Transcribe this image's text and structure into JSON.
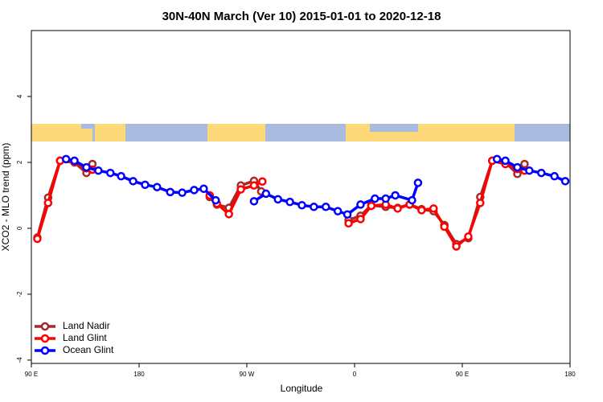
{
  "chart_data": {
    "type": "line",
    "title": "30N-40N March (Ver 10)   2015-01-01 to 2020-12-18",
    "xlabel": "Longitude",
    "ylabel": "XCO2 - MLO trend (ppm)",
    "xlim": [
      90,
      540
    ],
    "ylim": [
      -4.1,
      6
    ],
    "xticks": [
      {
        "value": 90,
        "label": "90 E"
      },
      180,
      {
        "value": 270,
        "label": "90 W"
      },
      {
        "value": 360,
        "label": "0"
      },
      {
        "value": 450,
        "label": "90 E"
      },
      {
        "value": 540,
        "label": "180"
      }
    ],
    "yticks": [
      -4,
      -2,
      0,
      2,
      4
    ],
    "legend": "bottomleft",
    "series": [
      {
        "name": "Land Nadir",
        "color": "#a52a2a",
        "x": [
          95,
          104,
          114,
          126,
          136,
          141,
          null,
          239,
          245,
          255,
          265,
          276,
          282,
          null,
          355,
          365,
          374,
          386,
          396,
          406,
          416,
          426,
          435,
          445,
          455,
          465,
          475,
          486,
          496,
          502
        ],
        "values": [
          -0.28,
          0.93,
          2.05,
          2.0,
          1.68,
          1.95,
          null,
          0.95,
          0.72,
          0.62,
          1.3,
          1.44,
          1.12,
          null,
          0.25,
          0.38,
          0.7,
          0.65,
          0.62,
          0.72,
          0.58,
          0.52,
          0.1,
          -0.48,
          -0.3,
          0.95,
          2.05,
          2.0,
          1.65,
          1.95
        ]
      },
      {
        "name": "Land Glint",
        "color": "#ff0000",
        "x": [
          95,
          104,
          114,
          126,
          136,
          141,
          null,
          239,
          245,
          255,
          265,
          276,
          283,
          null,
          355,
          365,
          374,
          386,
          396,
          406,
          416,
          426,
          435,
          445,
          455,
          465,
          475,
          486,
          496,
          502
        ],
        "values": [
          -0.32,
          0.77,
          2.05,
          2.02,
          1.82,
          1.78,
          null,
          1.0,
          0.75,
          0.43,
          1.18,
          1.3,
          1.42,
          null,
          0.15,
          0.28,
          0.68,
          0.72,
          0.6,
          0.72,
          0.55,
          0.6,
          0.05,
          -0.55,
          -0.25,
          0.77,
          2.05,
          1.95,
          1.8,
          1.75
        ]
      },
      {
        "name": "Ocean Glint",
        "color": "#0000ff",
        "x": [
          119,
          126,
          136,
          146,
          156,
          165,
          175,
          185,
          195,
          206,
          216,
          226,
          234,
          244,
          null,
          276,
          286,
          296,
          306,
          316,
          326,
          336,
          346,
          354,
          365,
          377,
          386,
          394,
          408,
          413,
          null,
          479,
          486,
          496,
          506,
          516,
          527,
          536
        ],
        "values": [
          2.1,
          2.05,
          1.85,
          1.75,
          1.68,
          1.58,
          1.43,
          1.32,
          1.25,
          1.1,
          1.08,
          1.16,
          1.2,
          0.85,
          null,
          0.82,
          1.05,
          0.88,
          0.8,
          0.7,
          0.65,
          0.65,
          0.52,
          0.42,
          0.72,
          0.9,
          0.9,
          1.0,
          0.85,
          1.38,
          null,
          2.1,
          2.05,
          1.85,
          1.75,
          1.68,
          1.58,
          1.43
        ]
      }
    ]
  }
}
